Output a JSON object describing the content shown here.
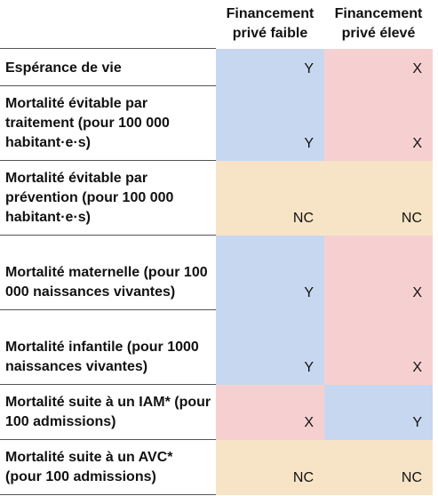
{
  "headers": {
    "low": "Financement privé faible",
    "high": "Financement privé élevé"
  },
  "rows": [
    {
      "label": "Espérance de vie",
      "low": "Y",
      "high": "X"
    },
    {
      "label": "Mortalité évitable par traitement (pour 100 000 habitant·e·s)",
      "low": "Y",
      "high": "X"
    },
    {
      "label": "Mortalité évitable par prévention (pour 100 000 habitant·e·s)",
      "low": "NC",
      "high": "NC"
    },
    {
      "label": "Mortalité maternelle (pour 100 000 naissances vivantes)",
      "low": "Y",
      "high": "X"
    },
    {
      "label": "Mortalité infantile (pour 1000 naissances vivantes)",
      "low": "Y",
      "high": "X"
    },
    {
      "label": "Mortalité suite à un IAM* (pour 100 admissions)",
      "low": "X",
      "high": "Y"
    },
    {
      "label": "Mortalité suite à un AVC* (pour 100 admissions)",
      "low": "NC",
      "high": "NC"
    }
  ],
  "colors": {
    "Y": "#c8d7f0",
    "X": "#f6d0d0",
    "NC": "#f7e4c6",
    "rule": "#555555"
  }
}
